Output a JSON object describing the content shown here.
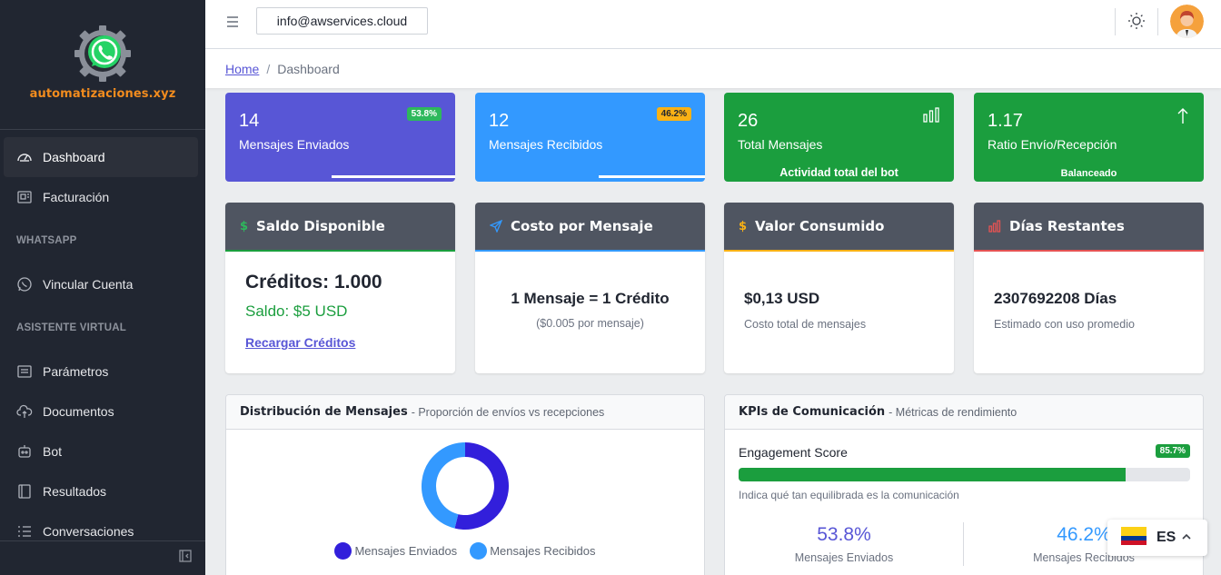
{
  "brand": {
    "name": "automatizaciones.xyz"
  },
  "sidebar": {
    "items": [
      {
        "label": "Dashboard",
        "icon": "speedometer-icon"
      },
      {
        "label": "Facturación",
        "icon": "invoice-icon"
      }
    ],
    "section_whatsapp": "WHATSAPP",
    "whatsapp_items": [
      {
        "label": "Vincular Cuenta",
        "icon": "whatsapp-icon"
      }
    ],
    "section_asistente": "ASISTENTE VIRTUAL",
    "asistente_items": [
      {
        "label": "Parámetros",
        "icon": "list-icon"
      },
      {
        "label": "Documentos",
        "icon": "cloud-upload-icon"
      },
      {
        "label": "Bot",
        "icon": "bot-icon"
      },
      {
        "label": "Resultados",
        "icon": "book-icon"
      },
      {
        "label": "Conversaciones",
        "icon": "list-numbers-icon"
      }
    ]
  },
  "header": {
    "email": "info@awservices.cloud"
  },
  "breadcrumb": {
    "home": "Home",
    "current": "Dashboard",
    "separator": "/"
  },
  "stats": [
    {
      "value": "14",
      "label": "Mensajes Enviados",
      "badge": "53.8%",
      "progress": 0.538,
      "color": "#5856d6",
      "badge_color": "#2eb85c"
    },
    {
      "value": "12",
      "label": "Mensajes Recibidos",
      "badge": "46.2%",
      "progress": 0.462,
      "color": "#3399ff",
      "badge_color": "#f9b115"
    },
    {
      "value": "26",
      "label": "Total Mensajes",
      "footer": "Actividad total del bot",
      "color": "#1b9e3e"
    },
    {
      "value": "1.17",
      "label": "Ratio Envío/Recepción",
      "footer": "Balanceado",
      "color": "#1b9e3e"
    }
  ],
  "info_cards": {
    "saldo": {
      "title": "Saldo Disponible",
      "icon_glyph": "$",
      "credits": "Créditos: 1.000",
      "balance": "Saldo: $5 USD",
      "link": "Recargar Créditos"
    },
    "costo": {
      "title": "Costo por Mensaje",
      "main": "1 Mensaje = 1 Crédito",
      "sub": "($0.005 por mensaje)"
    },
    "valor": {
      "title": "Valor Consumido",
      "icon_glyph": "$",
      "main": "$0,13 USD",
      "sub": "Costo total de mensajes"
    },
    "dias": {
      "title": "Días Restantes",
      "main": "2307692208 Días",
      "sub": "Estimado con uso promedio"
    }
  },
  "distribucion": {
    "title": "Distribución de Mensajes",
    "subtitle": "- Proporción de envíos vs recepciones",
    "legend": [
      {
        "label": "Mensajes Enviados",
        "color": "#321fdb"
      },
      {
        "label": "Mensajes Recibidos",
        "color": "#3399ff"
      }
    ]
  },
  "chart_data": {
    "type": "pie",
    "categories": [
      "Mensajes Enviados",
      "Mensajes Recibidos"
    ],
    "values": [
      14,
      12
    ],
    "colors": [
      "#321fdb",
      "#3399ff"
    ],
    "legend_position": "bottom"
  },
  "kpis": {
    "title": "KPIs de Comunicación",
    "subtitle": "- Métricas de rendimiento",
    "engagement_label": "Engagement Score",
    "engagement_badge": "85.7%",
    "engagement_value": 0.857,
    "engagement_desc": "Indica qué tan equilibrada es la comunicación",
    "sent_pct": "53.8%",
    "sent_label": "Mensajes Enviados",
    "recv_pct": "46.2%",
    "recv_label": "Mensajes Recibidos"
  },
  "language": {
    "code": "ES"
  }
}
